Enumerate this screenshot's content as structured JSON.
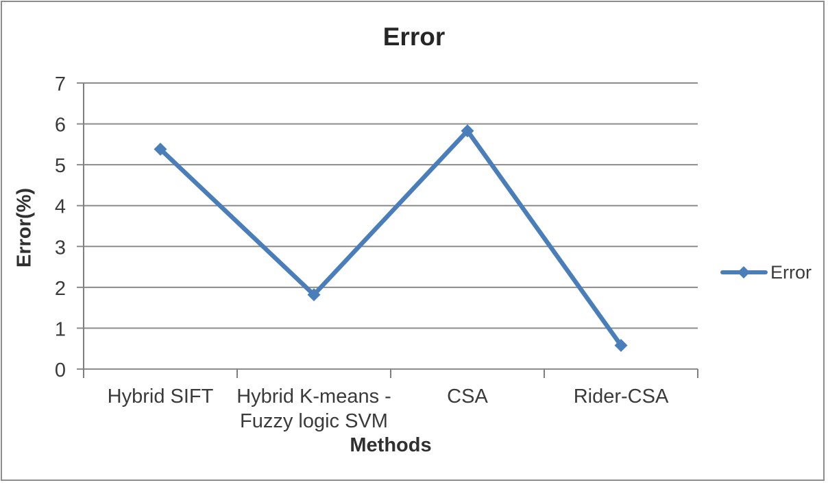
{
  "chart_data": {
    "type": "line",
    "title": "Error",
    "xlabel": "Methods",
    "ylabel": "Error(%)",
    "categories": [
      "Hybrid SIFT",
      "Hybrid K-means -\nFuzzy logic SVM",
      "CSA",
      "Rider-CSA"
    ],
    "series": [
      {
        "name": "Error",
        "values": [
          5.38,
          1.82,
          5.83,
          0.58
        ],
        "marker": "diamond"
      }
    ],
    "ylim": [
      0,
      7
    ],
    "yticks": [
      0,
      1,
      2,
      3,
      4,
      5,
      6,
      7
    ],
    "grid": true,
    "legend_position": "right",
    "colors": {
      "series": "#4A7EBB",
      "gridline": "#8C8C8C",
      "axis": "#7F7F7F",
      "tick_text": "#3A3A3A",
      "title_text": "#262626",
      "border": "#8C8C8C"
    }
  }
}
